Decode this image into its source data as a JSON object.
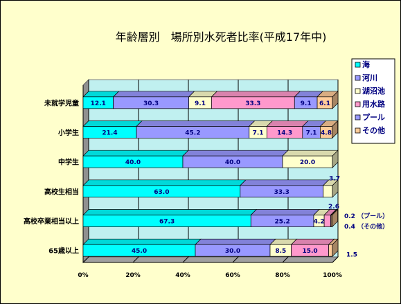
{
  "chart_data": {
    "type": "bar",
    "orientation": "horizontal",
    "stacked": "percent",
    "title": "年齢層別　場所別水死者比率(平成17年中)",
    "xlabel": "",
    "ylabel": "",
    "xlim": [
      0,
      100
    ],
    "x_ticks": [
      "0%",
      "20%",
      "40%",
      "60%",
      "80%",
      "100%"
    ],
    "grid": true,
    "legend_position": "right",
    "categories": [
      "未就学児童",
      "小学生",
      "中学生",
      "高校生相当",
      "高校卒業相当以上",
      "65歳以上"
    ],
    "series": [
      {
        "name": "海",
        "color": "#00ffff",
        "values": [
          12.1,
          21.4,
          40.0,
          63.0,
          67.3,
          45.0
        ]
      },
      {
        "name": "河川",
        "color": "#9999ff",
        "values": [
          30.3,
          45.2,
          40.0,
          33.3,
          25.2,
          30.0
        ]
      },
      {
        "name": "湖沼池",
        "color": "#ffffcc",
        "values": [
          9.1,
          7.1,
          20.0,
          3.7,
          4.2,
          8.5
        ]
      },
      {
        "name": "用水路",
        "color": "#ff99cc",
        "values": [
          33.3,
          14.3,
          0,
          0,
          2.6,
          15.0
        ]
      },
      {
        "name": "プール",
        "color": "#9999ff",
        "values": [
          9.1,
          7.1,
          0,
          0,
          0.2,
          0
        ]
      },
      {
        "name": "その他",
        "color": "#ffcc99",
        "values": [
          6.1,
          4.8,
          0,
          0,
          0.4,
          1.5
        ]
      }
    ],
    "annotations": [
      {
        "category": "高校生相当",
        "text": "3.7"
      },
      {
        "category": "高校卒業相当以上",
        "text": "2.6"
      },
      {
        "category": "高校卒業相当以上",
        "text": "0.2 （プール）"
      },
      {
        "category": "高校卒業相当以上",
        "text": "0.4 （その他）"
      },
      {
        "category": "65歳以上",
        "text": "1.5"
      }
    ]
  }
}
